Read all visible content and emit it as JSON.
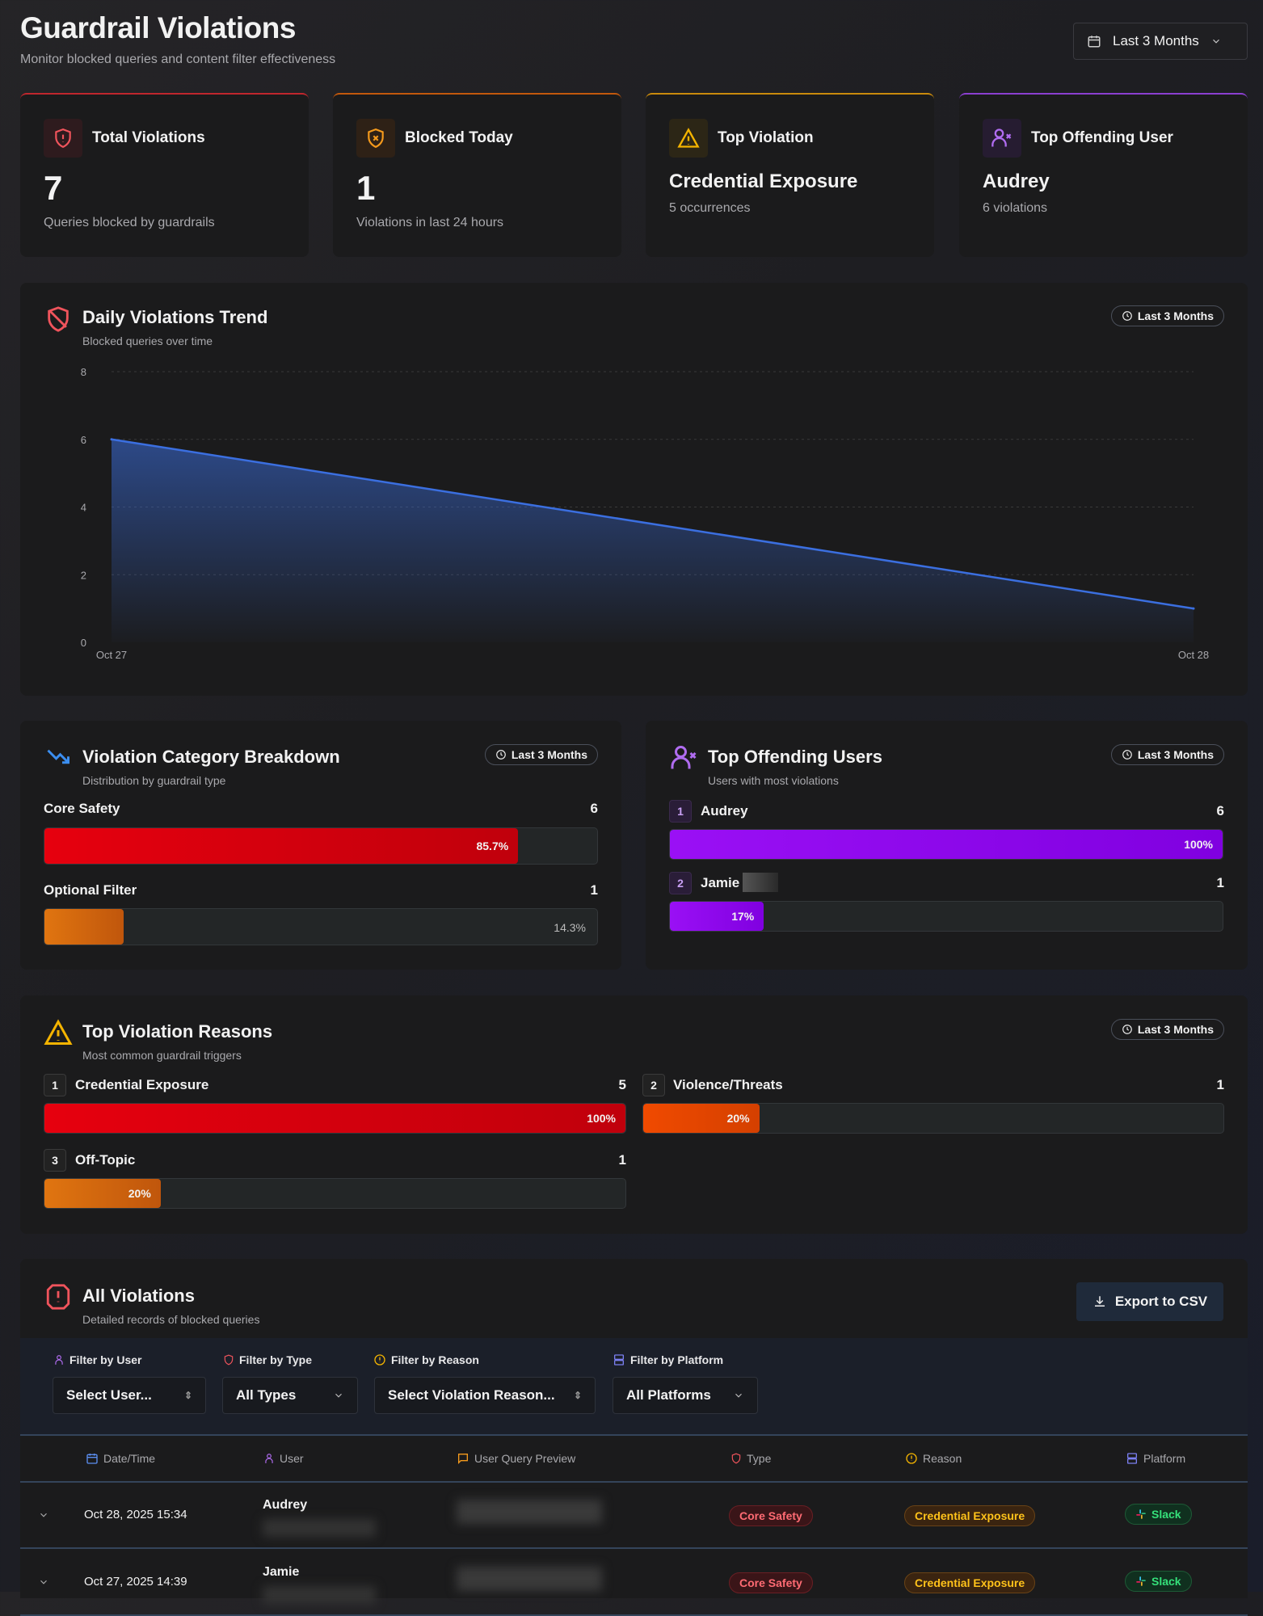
{
  "header": {
    "title": "Guardrail Violations",
    "subtitle": "Monitor blocked queries and content filter effectiveness",
    "date_range": "Last 3 Months"
  },
  "kpis": [
    {
      "title": "Total Violations",
      "value": "7",
      "desc": "Queries blocked by guardrails",
      "accent": "#c0262d",
      "icon": "shield-alert-icon"
    },
    {
      "title": "Blocked Today",
      "value": "1",
      "desc": "Violations in last 24 hours",
      "accent": "#c2580c",
      "icon": "shield-x-icon"
    },
    {
      "title": "Top Violation",
      "value": "Credential Exposure",
      "desc": "5 occurrences",
      "accent": "#c98a0c",
      "icon": "warning-icon"
    },
    {
      "title": "Top Offending User",
      "value": "Audrey",
      "desc": "6 violations",
      "accent": "#8b3fd0",
      "icon": "user-x-icon"
    }
  ],
  "trend": {
    "title": "Daily Violations Trend",
    "subtitle": "Blocked queries over time",
    "range": "Last 3 Months"
  },
  "chart_data": {
    "type": "area",
    "x": [
      "Oct 27",
      "Oct 28"
    ],
    "values": [
      6,
      1
    ],
    "ylim": [
      0,
      8
    ],
    "yticks": [
      "0",
      "2",
      "4",
      "6",
      "8"
    ],
    "grid": true,
    "color": "#3b6fe0"
  },
  "category": {
    "title": "Violation Category Breakdown",
    "subtitle": "Distribution by guardrail type",
    "range": "Last 3 Months",
    "items": [
      {
        "label": "Core Safety",
        "count": "6",
        "pct": "85.7%",
        "value": 85.7
      },
      {
        "label": "Optional Filter",
        "count": "1",
        "pct": "14.3%",
        "value": 14.3
      }
    ]
  },
  "users": {
    "title": "Top Offending Users",
    "subtitle": "Users with most violations",
    "range": "Last 3 Months",
    "items": [
      {
        "rank": "1",
        "name": "Audrey",
        "count": "6",
        "pct": "100%",
        "value": 100
      },
      {
        "rank": "2",
        "name": "Jamie",
        "count": "1",
        "pct": "17%",
        "value": 17
      }
    ]
  },
  "reasons": {
    "title": "Top Violation Reasons",
    "subtitle": "Most common guardrail triggers",
    "range": "Last 3 Months",
    "items": [
      {
        "rank": "1",
        "name": "Credential Exposure",
        "count": "5",
        "pct": "100%",
        "value": 100
      },
      {
        "rank": "2",
        "name": "Violence/Threats",
        "count": "1",
        "pct": "20%",
        "value": 20
      },
      {
        "rank": "3",
        "name": "Off-Topic",
        "count": "1",
        "pct": "20%",
        "value": 20
      }
    ]
  },
  "violations": {
    "title": "All Violations",
    "subtitle": "Detailed records of blocked queries",
    "export": "Export to CSV",
    "filters": [
      {
        "label": "Filter by User",
        "value": "Select User..."
      },
      {
        "label": "Filter by Type",
        "value": "All Types"
      },
      {
        "label": "Filter by Reason",
        "value": "Select Violation Reason..."
      },
      {
        "label": "Filter by Platform",
        "value": "All Platforms"
      }
    ],
    "columns": [
      "Date/Time",
      "User",
      "User Query Preview",
      "Type",
      "Reason",
      "Platform"
    ],
    "rows": [
      {
        "date": "Oct 28, 2025 15:34",
        "user": "Audrey",
        "type": "Core Safety",
        "reason": "Credential Exposure",
        "platform": "Slack"
      },
      {
        "date": "Oct 27, 2025 14:39",
        "user": "Jamie",
        "type": "Core Safety",
        "reason": "Credential Exposure",
        "platform": "Slack"
      }
    ]
  }
}
